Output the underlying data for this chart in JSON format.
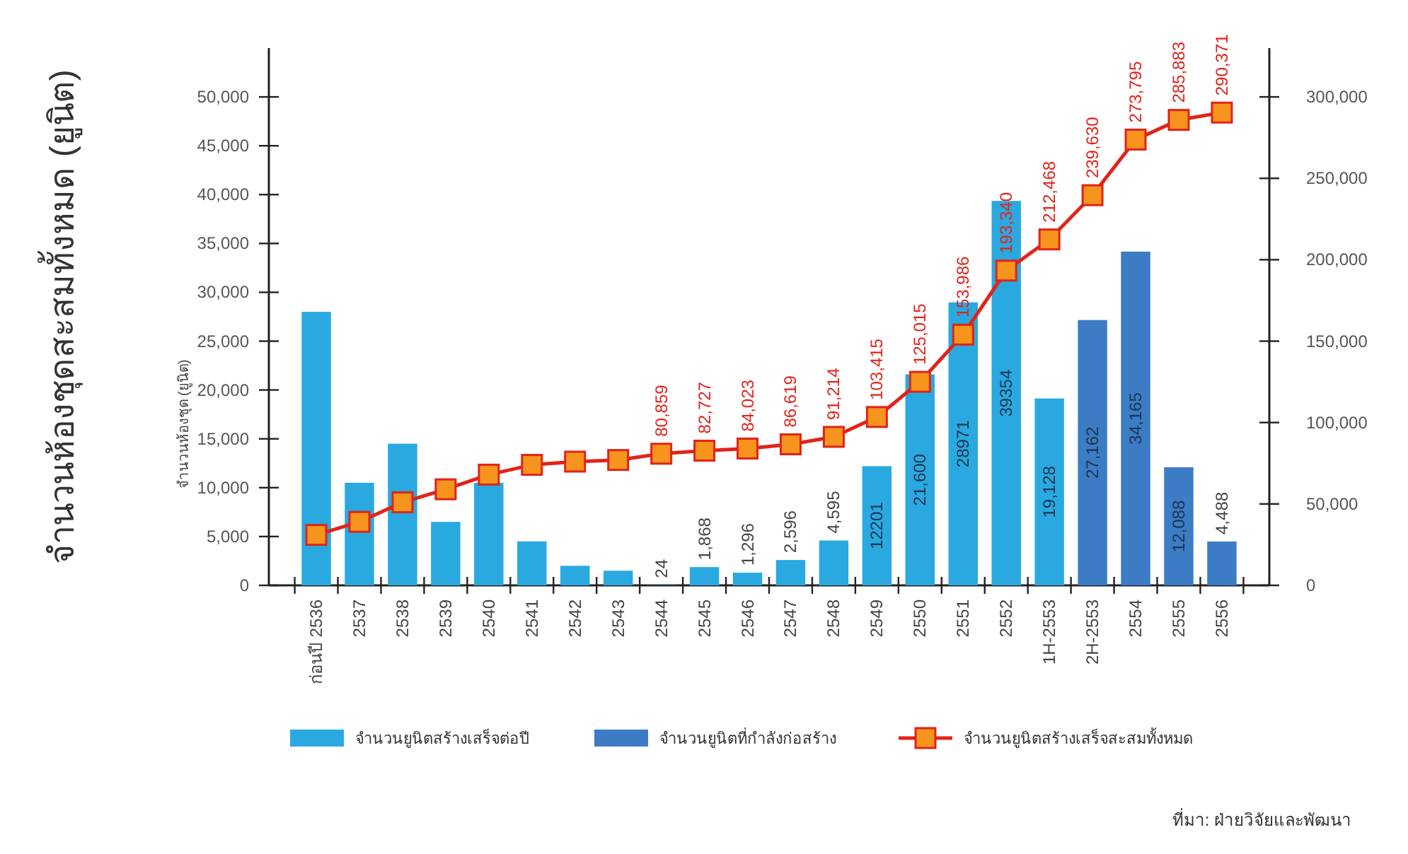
{
  "chart_data": {
    "type": "bar",
    "stacked": true,
    "legend": "bottom",
    "marker": "square",
    "categories": [
      "ก่อนปี 2536",
      "2537",
      "2538",
      "2539",
      "2540",
      "2541",
      "2542",
      "2543",
      "2544",
      "2545",
      "2546",
      "2547",
      "2548",
      "2549",
      "2550",
      "2551",
      "2552",
      "1H-2553",
      "2H-2553",
      "2554",
      "2555",
      "2556"
    ],
    "ylabel": "จำนวนห้องชุดสะสมทั้งหมด (ยูนิต)",
    "ylim": [
      0,
      55000
    ],
    "yticks": [
      0,
      {
        "value": 5000,
        "label": "5,000"
      },
      {
        "value": 10000,
        "label": "10,000"
      },
      {
        "value": 15000,
        "label": "15,000"
      },
      {
        "value": 20000,
        "label": "20,000"
      },
      {
        "value": 25000,
        "label": "25,000"
      },
      {
        "value": 30000,
        "label": "30,000"
      },
      {
        "value": 35000,
        "label": "35,000"
      },
      {
        "value": 40000,
        "label": "40,000"
      },
      {
        "value": 45000,
        "label": "45,000"
      },
      {
        "value": 50000,
        "label": "50,000"
      }
    ],
    "y2lim": [
      0,
      330000
    ],
    "y2ticks": [
      0,
      {
        "value": 50000,
        "label": "50,000"
      },
      {
        "value": 100000,
        "label": "100,000"
      },
      {
        "value": 150000,
        "label": "150,000"
      },
      {
        "value": 200000,
        "label": "200,000"
      },
      {
        "value": 250000,
        "label": "250,000"
      },
      {
        "value": 300000,
        "label": "300,000"
      }
    ],
    "series": [
      {
        "name": "จำนวนยูนิตสร้างเสร็จต่อปี",
        "color": "#29a9e0",
        "values": [
          28000,
          10500,
          14500,
          6500,
          10500,
          4500,
          2000,
          1500,
          24,
          1868,
          1296,
          2596,
          4595,
          12201,
          21600,
          28971,
          39354,
          19128,
          null,
          null,
          null,
          null
        ],
        "value_labels": [
          null,
          null,
          null,
          null,
          null,
          null,
          null,
          null,
          "24",
          "1,868",
          "1,296",
          "2,596",
          "4,595",
          "12201",
          "21,600",
          "28971",
          "39354",
          "19,128",
          null,
          null,
          null,
          null
        ]
      },
      {
        "name": "จำนวนยูนิตที่กำลังก่อสร้าง",
        "color": "#3b7cc4",
        "values": [
          null,
          null,
          null,
          null,
          null,
          null,
          null,
          null,
          null,
          null,
          null,
          null,
          null,
          null,
          null,
          null,
          null,
          null,
          27162,
          34165,
          12088,
          4488
        ],
        "value_labels": [
          null,
          null,
          null,
          null,
          null,
          null,
          null,
          null,
          null,
          null,
          null,
          null,
          null,
          null,
          null,
          null,
          null,
          null,
          "27,162",
          "34,165",
          "12,088",
          "4,488"
        ]
      },
      {
        "name": "จำนวนยูนิตสร้างเสร็จสะสมทั้งหมด",
        "type": "line",
        "axis": "y2",
        "color": "#e2231a",
        "values": [
          31000,
          39000,
          51000,
          59000,
          68000,
          74000,
          76000,
          77000,
          80859,
          82727,
          84023,
          86619,
          91214,
          103415,
          125015,
          153986,
          193340,
          212468,
          239630,
          273795,
          285883,
          290371
        ],
        "value_labels": [
          null,
          null,
          null,
          null,
          null,
          null,
          null,
          null,
          "80,859",
          "82,727",
          "84,023",
          "86,619",
          "91,214",
          "103,415",
          "125,015",
          "153,986",
          "193,340",
          "212,468",
          "239,630",
          "273,795",
          "285,883",
          "290,371"
        ]
      }
    ],
    "annotations": [
      "จำนวนห้องชุด (ยูนิต)",
      "ที่มา: ฝ่ายวิจัยและพัฒนา"
    ]
  }
}
